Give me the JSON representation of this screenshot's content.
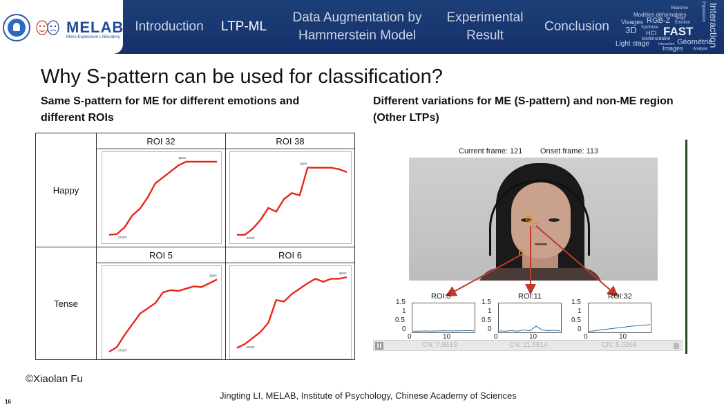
{
  "header": {
    "logo_text": "MELAB",
    "logo_subtitle": "Micro Expression LABoratory",
    "nav": [
      {
        "label": "Introduction",
        "active": false
      },
      {
        "label": "LTP-ML",
        "active": true
      },
      {
        "label": "Data Augmentation by Hammerstein Model",
        "active": false
      },
      {
        "label": "Experimental Result",
        "active": false
      },
      {
        "label": "Conclusion",
        "active": false
      }
    ],
    "word_cloud": [
      "Réalisme",
      "Expression",
      "Modèles déformables",
      "Interaction",
      "Visages",
      "RGB-Z",
      "Temps",
      "Emotion",
      "3D",
      "Synthèse",
      "HCI",
      "FAST",
      "Multimodalité",
      "Light stage",
      "Interaction",
      "Géométrie",
      "Images",
      "Analyse"
    ]
  },
  "slide": {
    "title": "Why S-pattern can be used for classification?",
    "left_heading": "Same S-pattern for ME for different emotions and different ROIs",
    "right_heading": "Different variations for ME (S-pattern) and non-ME region (Other LTPs)",
    "copyright": "©Xiaolan Fu",
    "footer": "Jingting LI, MELAB, Institute of Psychology, Chinese Academy of Sciences",
    "page_number": "16"
  },
  "grid": {
    "rows": [
      {
        "label": "Happy",
        "cols": [
          "ROI 32",
          "ROI 38"
        ]
      },
      {
        "label": "Tense",
        "cols": [
          "ROI 5",
          "ROI 6"
        ]
      }
    ],
    "plot_labels": {
      "apex": "apex",
      "onset": "onset"
    },
    "colors": {
      "curve": "#e8261a"
    }
  },
  "chart_data": [
    {
      "type": "line",
      "title": "ROI 32",
      "series": [
        {
          "values": [
            0.02,
            0.03,
            0.12,
            0.28,
            0.37,
            0.52,
            0.71,
            0.79,
            0.87,
            0.95,
            1.0,
            1.0,
            1.0,
            1.0,
            1.0
          ]
        }
      ]
    },
    {
      "type": "line",
      "title": "ROI 38",
      "series": [
        {
          "values": [
            0.02,
            0.02,
            0.1,
            0.22,
            0.38,
            0.33,
            0.5,
            0.58,
            0.55,
            0.92,
            0.92,
            0.92,
            0.92,
            0.9,
            0.86
          ]
        }
      ]
    },
    {
      "type": "line",
      "title": "ROI 5",
      "series": [
        {
          "values": [
            0.0,
            0.06,
            0.22,
            0.36,
            0.5,
            0.57,
            0.64,
            0.78,
            0.81,
            0.8,
            0.83,
            0.86,
            0.85,
            0.9,
            0.95
          ]
        }
      ]
    },
    {
      "type": "line",
      "title": "ROI 6",
      "series": [
        {
          "values": [
            0.05,
            0.1,
            0.18,
            0.26,
            0.38,
            0.68,
            0.66,
            0.76,
            0.83,
            0.9,
            0.96,
            0.92,
            0.96,
            0.96,
            0.98
          ]
        }
      ]
    }
  ],
  "video": {
    "current_frame_label": "Current frame: 121",
    "onset_frame_label": "Onset frame: 113",
    "rois": [
      {
        "label": "ROI:5",
        "cn": "CN: 7.8613",
        "values": [
          0.03,
          0.03,
          0.04,
          0.03,
          0.04,
          0.05,
          0.04,
          0.04,
          0.05,
          0.06,
          0.05
        ]
      },
      {
        "label": "ROI:11",
        "cn": "CN: 11.5814",
        "values": [
          0.04,
          0.03,
          0.06,
          0.03,
          0.1,
          0.05,
          0.3,
          0.1,
          0.05,
          0.08,
          0.04
        ]
      },
      {
        "label": "ROI:32",
        "cn": "CN: 5.0269",
        "values": [
          0.02,
          0.05,
          0.1,
          0.14,
          0.18,
          0.22,
          0.26,
          0.3,
          0.33,
          0.35,
          0.38
        ]
      }
    ],
    "y_ticks": [
      "1.5",
      "1",
      "0.5",
      "0"
    ],
    "x_ticks": [
      "0",
      "10"
    ],
    "colors": {
      "arrow": "#c0392b",
      "mini_line": "#2f6f9f",
      "roi_box": "#e88a1a"
    }
  }
}
